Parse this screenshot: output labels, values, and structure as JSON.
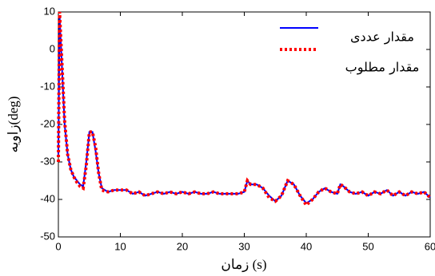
{
  "chart_data": {
    "type": "line",
    "xlabel": "زمان (s)",
    "ylabel": "زاویه(deg)",
    "x": [
      0,
      0.2,
      0.5,
      1,
      1.5,
      2,
      2.5,
      3,
      3.5,
      4,
      4.5,
      5,
      5.5,
      6,
      6.5,
      7,
      8,
      9,
      10,
      11,
      12,
      13,
      14,
      15,
      16,
      17,
      18,
      19,
      20,
      21,
      22,
      23,
      24,
      25,
      26,
      27,
      28,
      29,
      30,
      30.5,
      31,
      32,
      33,
      34,
      35,
      36,
      37,
      38,
      39,
      40,
      41,
      42,
      43,
      44,
      45,
      45.5,
      46,
      47,
      48,
      49,
      50,
      51,
      52,
      53,
      54,
      55,
      56,
      57,
      58,
      59,
      60
    ],
    "series": [
      {
        "name": "مقدار عددی",
        "color": "#0000ff",
        "linestyle": "solid",
        "values": [
          -28,
          9,
          -2,
          -20,
          -28,
          -32,
          -34,
          -35,
          -36,
          -36.5,
          -30,
          -22,
          -22,
          -27,
          -33,
          -37,
          -38,
          -37.5,
          -37.5,
          -37.5,
          -38.5,
          -38,
          -39,
          -38.5,
          -38,
          -38.5,
          -38,
          -38.5,
          -38,
          -38.5,
          -38,
          -38.5,
          -38.5,
          -38,
          -38.5,
          -38.5,
          -38.5,
          -38.5,
          -38,
          -35,
          -36,
          -36,
          -37,
          -39,
          -40.5,
          -39,
          -35,
          -36,
          -39,
          -41,
          -40,
          -38,
          -37,
          -38,
          -38.5,
          -36,
          -36.5,
          -38,
          -38.5,
          -38,
          -39,
          -38,
          -38.5,
          -37.5,
          -39,
          -38,
          -39,
          -38,
          -38.5,
          -38,
          -39.5
        ]
      },
      {
        "name": "مقدار مطلوب",
        "color": "#ff0000",
        "linestyle": "dotted",
        "values": [
          -30,
          10,
          -1,
          -19,
          -28,
          -32,
          -34,
          -35.5,
          -36.5,
          -37,
          -31,
          -22,
          -22,
          -26,
          -33,
          -37.5,
          -38,
          -37.5,
          -37.5,
          -37.5,
          -38.5,
          -38,
          -39,
          -38.5,
          -38,
          -38.5,
          -38,
          -38.5,
          -38,
          -38.5,
          -38,
          -38.5,
          -38.5,
          -38,
          -38.5,
          -38.5,
          -38.5,
          -38.5,
          -38,
          -35,
          -36,
          -36,
          -37,
          -39.5,
          -40.5,
          -39,
          -35,
          -36,
          -39,
          -41.5,
          -40,
          -38,
          -37,
          -38,
          -38.5,
          -36,
          -36.5,
          -38,
          -38.5,
          -38,
          -39,
          -38,
          -38.5,
          -37.5,
          -39,
          -38,
          -39,
          -38,
          -38.5,
          -38,
          -39.5
        ]
      }
    ],
    "xlim": [
      0,
      60
    ],
    "xticks": [
      0,
      10,
      20,
      30,
      40,
      50,
      60
    ],
    "ylim": [
      -50,
      10
    ],
    "yticks": [
      -50,
      -40,
      -30,
      -20,
      -10,
      0,
      10
    ],
    "grid": false,
    "legend": "upper right"
  }
}
